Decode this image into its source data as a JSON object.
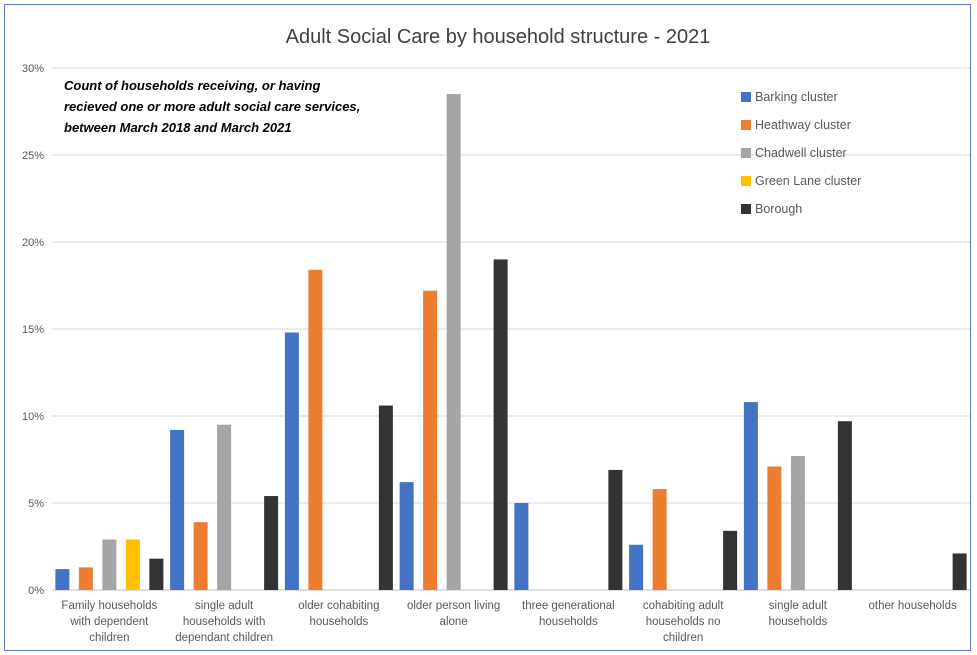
{
  "chart_data": {
    "type": "bar",
    "title": "Adult Social Care by household structure - 2021",
    "note_lines": [
      "Count of households receiving, or having",
      "recieved one or more adult social care services,",
      "between March 2018 and March 2021"
    ],
    "xlabel": "",
    "ylabel": "",
    "ylim": [
      0,
      30
    ],
    "y_ticks": [
      "0%",
      "5%",
      "10%",
      "15%",
      "20%",
      "25%",
      "30%"
    ],
    "grid": true,
    "legend_position": "top-right",
    "categories": [
      [
        "Family households",
        "with dependent",
        "children"
      ],
      [
        "single adult",
        "households with",
        "dependant children"
      ],
      [
        "older cohabiting",
        "households"
      ],
      [
        "older person living",
        "alone"
      ],
      [
        "three generational",
        "households"
      ],
      [
        "cohabiting adult",
        "households no",
        "children"
      ],
      [
        "single adult",
        "households"
      ],
      [
        "other households"
      ]
    ],
    "series": [
      {
        "name": "Barking cluster",
        "color": "#4472c4",
        "values": [
          1.2,
          9.2,
          14.8,
          6.2,
          5.0,
          2.6,
          10.8,
          null
        ]
      },
      {
        "name": "Heathway cluster",
        "color": "#ed7d31",
        "values": [
          1.3,
          3.9,
          18.4,
          17.2,
          null,
          5.8,
          7.1,
          null
        ]
      },
      {
        "name": "Chadwell cluster",
        "color": "#a5a5a5",
        "values": [
          2.9,
          9.5,
          null,
          28.5,
          null,
          null,
          7.7,
          null
        ]
      },
      {
        "name": "Green Lane cluster",
        "color": "#ffc000",
        "values": [
          2.9,
          null,
          null,
          null,
          null,
          null,
          null,
          null
        ]
      },
      {
        "name": "Borough",
        "color": "#333333",
        "values": [
          1.8,
          5.4,
          10.6,
          19.0,
          6.9,
          3.4,
          9.7,
          2.1
        ]
      }
    ]
  }
}
